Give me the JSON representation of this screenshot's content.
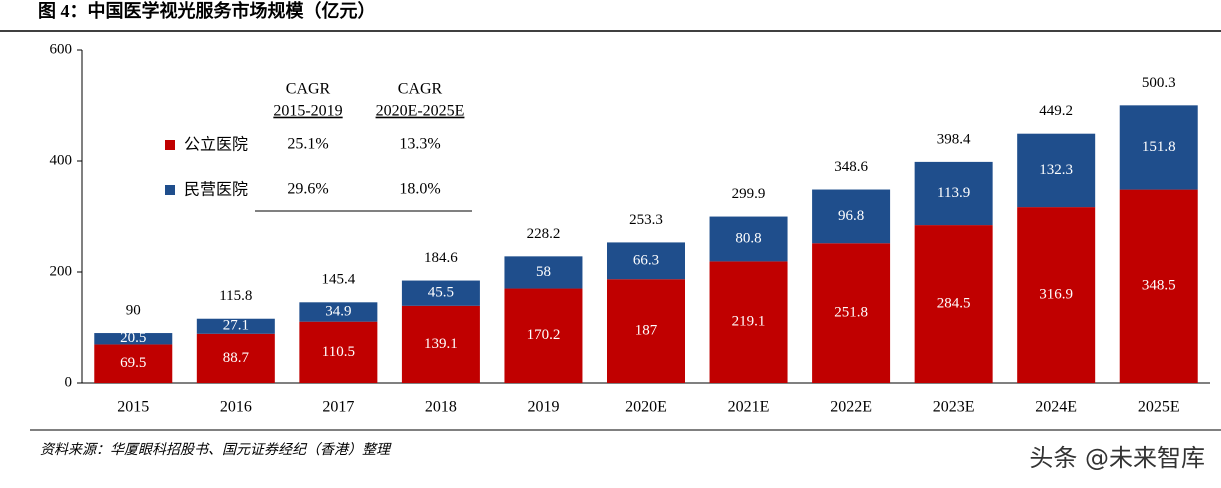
{
  "title": "图 4：中国医学视光服务市场规模（亿元）",
  "source": "资料来源：华厦眼科招股书、国元证券经纪（香港）整理",
  "watermark": "头条 @未来智库",
  "chart_data": {
    "type": "stacked_bar",
    "categories": [
      "2015",
      "2016",
      "2017",
      "2018",
      "2019",
      "2020E",
      "2021E",
      "2022E",
      "2023E",
      "2024E",
      "2025E"
    ],
    "series": [
      {
        "name": "公立医院",
        "color": "#c00000",
        "values": [
          69.5,
          88.7,
          110.5,
          139.1,
          170.2,
          187,
          219.1,
          251.8,
          284.5,
          316.9,
          348.5
        ],
        "cagr": [
          "25.1%",
          "13.3%"
        ]
      },
      {
        "name": "民营医院",
        "color": "#1f4e8c",
        "values": [
          20.5,
          27.1,
          34.9,
          45.5,
          58,
          66.3,
          80.8,
          96.8,
          113.9,
          132.3,
          151.8
        ],
        "cagr": [
          "29.6%",
          "18.0%"
        ]
      }
    ],
    "totals": [
      90,
      115.8,
      145.4,
      184.6,
      228.2,
      253.3,
      299.9,
      348.6,
      398.4,
      449.2,
      500.3
    ],
    "cagr_headers": [
      [
        "CAGR",
        "2015-2019"
      ],
      [
        "CAGR",
        "2020E-2025E"
      ]
    ],
    "ylim": [
      0,
      600
    ],
    "yticks": [
      0,
      200,
      400,
      600
    ]
  }
}
